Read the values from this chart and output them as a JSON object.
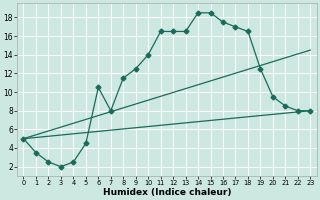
{
  "xlabel": "Humidex (Indice chaleur)",
  "background_color": "#cce8e0",
  "grid_color": "#ffffff",
  "line_color": "#1a6b5a",
  "xlim": [
    -0.5,
    23.5
  ],
  "ylim": [
    1.0,
    19.5
  ],
  "xticks": [
    0,
    1,
    2,
    3,
    4,
    5,
    6,
    7,
    8,
    9,
    10,
    11,
    12,
    13,
    14,
    15,
    16,
    17,
    18,
    19,
    20,
    21,
    22,
    23
  ],
  "yticks": [
    2,
    4,
    6,
    8,
    10,
    12,
    14,
    16,
    18
  ],
  "line1_x": [
    0,
    23
  ],
  "line1_y": [
    5.0,
    8.0
  ],
  "line2_x": [
    0,
    23
  ],
  "line2_y": [
    5.0,
    14.5
  ],
  "curve_x": [
    0,
    1,
    2,
    3,
    4,
    5,
    6,
    7,
    8,
    9,
    10,
    11,
    12,
    13,
    14,
    15,
    16,
    17,
    18,
    19,
    20,
    21,
    22,
    23
  ],
  "curve_y": [
    5.0,
    3.5,
    2.5,
    2.0,
    2.5,
    4.5,
    10.5,
    8.0,
    11.5,
    12.5,
    14.0,
    16.5,
    16.5,
    16.5,
    18.5,
    18.5,
    17.5,
    17.0,
    16.5,
    12.5,
    9.5,
    8.5,
    8.0,
    8.0
  ]
}
